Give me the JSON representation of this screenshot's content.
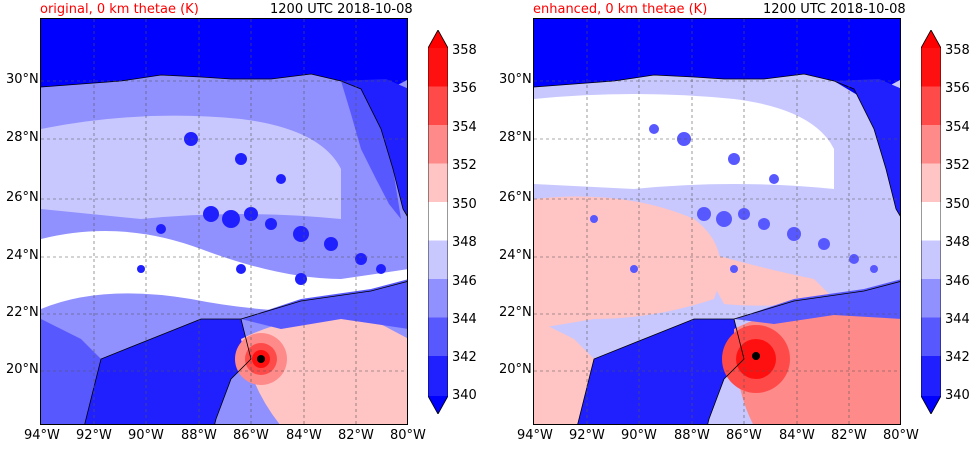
{
  "panels": [
    {
      "id": "left",
      "title_left": "original, 0 km thetae (K)",
      "title_right": "1200 UTC 2018-10-08"
    },
    {
      "id": "right",
      "title_left": "enhanced, 0 km thetae (K)",
      "title_right": "1200 UTC 2018-10-08"
    }
  ],
  "axes": {
    "x_ticks": [
      "94°W",
      "92°W",
      "90°W",
      "88°W",
      "86°W",
      "84°W",
      "82°W",
      "80°W"
    ],
    "y_ticks": [
      "30°N",
      "28°N",
      "26°N",
      "24°N",
      "22°N",
      "20°N"
    ]
  },
  "colorbar": {
    "levels": [
      "358",
      "356",
      "354",
      "352",
      "350",
      "348",
      "346",
      "344",
      "342",
      "340"
    ],
    "colors": [
      "#ff1010",
      "#ff4a4a",
      "#ff8a8a",
      "#ffc4c4",
      "#ffffff",
      "#c8c8ff",
      "#9090ff",
      "#5858ff",
      "#2020ff",
      "#0000ff"
    ],
    "over_color": "#ff0000",
    "under_color": "#0000ff"
  },
  "colors": {
    "title_red": "#ff0000",
    "land_dark_blue": "#0000ff",
    "coast_line": "#000000",
    "grid_line": "#555555"
  }
}
